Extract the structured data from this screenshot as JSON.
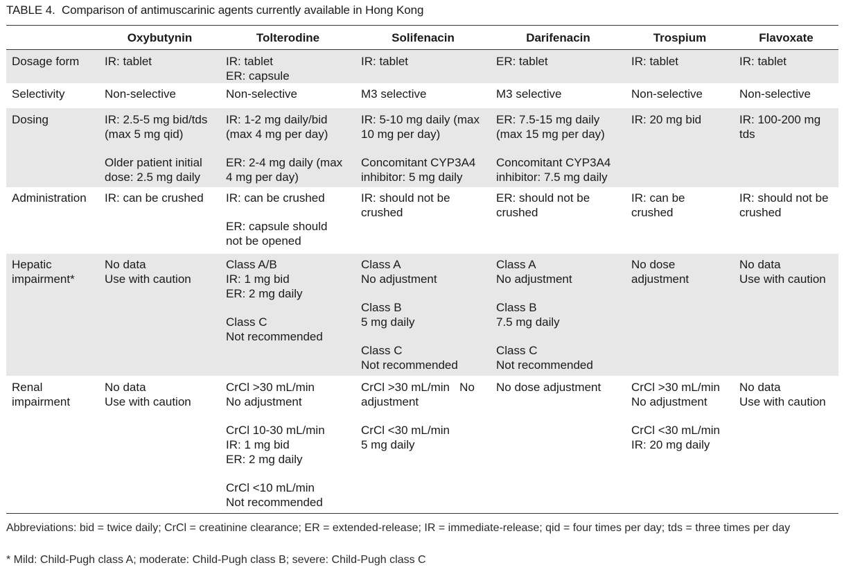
{
  "caption": {
    "label": "TABLE 4.",
    "text": "Comparison of antimuscarinic agents currently available in Hong Kong"
  },
  "table": {
    "headers": [
      "",
      "Oxybutynin",
      "Tolterodine",
      "Solifenacin",
      "Darifenacin",
      "Trospium",
      "Flavoxate"
    ],
    "rows": [
      {
        "label": "Dosage form",
        "cells": [
          [
            [
              "IR: tablet"
            ]
          ],
          [
            [
              "IR: tablet",
              "ER: capsule"
            ]
          ],
          [
            [
              "IR: tablet"
            ]
          ],
          [
            [
              "ER: tablet"
            ]
          ],
          [
            [
              "IR: tablet"
            ]
          ],
          [
            [
              "IR: tablet"
            ]
          ]
        ]
      },
      {
        "label": "Selectivity",
        "cells": [
          [
            [
              "Non-selective"
            ]
          ],
          [
            [
              "Non-selective"
            ]
          ],
          [
            [
              "M3 selective"
            ]
          ],
          [
            [
              "M3 selective"
            ]
          ],
          [
            [
              "Non-selective"
            ]
          ],
          [
            [
              "Non-selective"
            ]
          ]
        ]
      },
      {
        "label": "Dosing",
        "cells": [
          [
            [
              "IR: 2.5-5 mg bid/tds",
              "(max 5 mg qid)"
            ],
            [
              "Older patient initial",
              "dose: 2.5 mg daily"
            ]
          ],
          [
            [
              "IR: 1-2 mg daily/bid",
              "(max 4 mg per day)"
            ],
            [
              "ER: 2-4 mg daily (max",
              "4 mg per day)"
            ]
          ],
          [
            [
              "IR: 5-10 mg daily (max",
              "10 mg per day)"
            ],
            [
              "Concomitant CYP3A4",
              "inhibitor: 5 mg daily"
            ]
          ],
          [
            [
              "ER: 7.5-15 mg daily",
              "(max 15 mg per day)"
            ],
            [
              "Concomitant CYP3A4",
              "inhibitor: 7.5 mg daily"
            ]
          ],
          [
            [
              "IR: 20 mg bid"
            ]
          ],
          [
            [
              "IR: 100-200 mg",
              "tds"
            ]
          ]
        ]
      },
      {
        "label": "Administration",
        "cells": [
          [
            [
              "IR: can be crushed"
            ]
          ],
          [
            [
              "IR: can be crushed"
            ],
            [
              "ER: capsule should",
              "not be opened"
            ]
          ],
          [
            [
              "IR: should not be",
              "crushed"
            ]
          ],
          [
            [
              "ER: should not be",
              "crushed"
            ]
          ],
          [
            [
              "IR: can be",
              "crushed"
            ]
          ],
          [
            [
              "IR: should not be",
              "crushed"
            ]
          ]
        ]
      },
      {
        "label": "Hepatic impairment*",
        "label_lines": [
          "Hepatic",
          "impairment*"
        ],
        "cells": [
          [
            [
              "No data",
              "Use with caution"
            ]
          ],
          [
            [
              "Class A/B",
              "IR: 1 mg bid",
              "ER: 2 mg daily"
            ],
            [
              "Class C",
              "Not recommended"
            ]
          ],
          [
            [
              "Class A",
              "No adjustment"
            ],
            [
              "Class B",
              "5 mg daily"
            ],
            [
              "Class C",
              "Not recommended"
            ]
          ],
          [
            [
              "Class A",
              "No adjustment"
            ],
            [
              "Class B",
              "7.5 mg daily"
            ],
            [
              "Class C",
              "Not recommended"
            ]
          ],
          [
            [
              "No dose",
              "adjustment"
            ]
          ],
          [
            [
              "No data",
              "Use with caution"
            ]
          ]
        ]
      },
      {
        "label": "Renal impairment",
        "label_lines": [
          "Renal",
          "impairment"
        ],
        "cells": [
          [
            [
              "No data",
              "Use with caution"
            ]
          ],
          [
            [
              "CrCl >30 mL/min",
              "No adjustment"
            ],
            [
              "CrCl 10-30 mL/min",
              "IR: 1 mg bid",
              "ER: 2 mg daily"
            ],
            [
              "CrCl <10 mL/min",
              "Not recommended"
            ]
          ],
          [
            [
              "CrCl >30 mL/min   No",
              "adjustment"
            ],
            [
              "CrCl <30 mL/min",
              "5 mg daily"
            ]
          ],
          [
            [
              "No dose adjustment"
            ]
          ],
          [
            [
              "CrCl >30 mL/min",
              "No adjustment"
            ],
            [
              "CrCl <30 mL/min",
              "IR: 20 mg daily"
            ]
          ],
          [
            [
              "No data",
              "Use with caution"
            ]
          ]
        ]
      }
    ]
  },
  "footnotes": {
    "abbreviations": "Abbreviations: bid = twice daily; CrCl = creatinine clearance; ER = extended-release; IR = immediate-release; qid = four times per day; tds = three times per day",
    "hepatic": "*   Mild: Child-Pugh class A; moderate: Child-Pugh class B; severe: Child-Pugh class C"
  },
  "colors": {
    "shade": "#e7e7e7",
    "rule": "#333333"
  }
}
